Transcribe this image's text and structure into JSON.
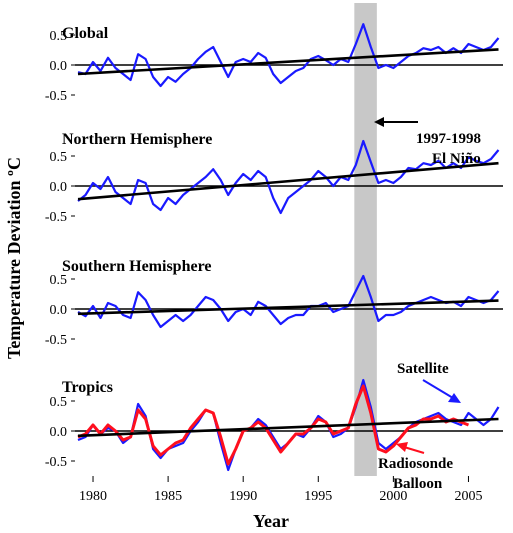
{
  "chart_data": {
    "type": "line",
    "xlabel": "Year",
    "ylabel": "Temperature Deviation ºC",
    "xlim": [
      1978.8,
      2007.3
    ],
    "x_ticks": [
      1980,
      1985,
      1990,
      1995,
      2000,
      2005
    ],
    "y_ticks": [
      "0.5",
      "0.0",
      "-0.5"
    ],
    "shaded_period": [
      1997.4,
      1998.9
    ],
    "annotations": {
      "el_nino_line1": "1997-1998",
      "el_nino_line2": "El Niño",
      "satellite": "Satellite",
      "radiosonde_line1": "Radiosonde",
      "radiosonde_line2": "Balloon"
    },
    "colors": {
      "satellite": "#1a1aff",
      "radiosonde": "#ff0f1e",
      "trend": "#000000",
      "shade": "#c8c8c8"
    },
    "panels": [
      {
        "title": "Global",
        "ylim": [
          -0.62,
          0.78
        ],
        "trend": {
          "x": [
            1979,
            2007
          ],
          "y": [
            -0.15,
            0.26
          ]
        },
        "series": [
          {
            "name": "Satellite",
            "x": [
              1979,
              1979.5,
              1980,
              1980.5,
              1981,
              1981.5,
              1982,
              1982.5,
              1983,
              1983.5,
              1984,
              1984.5,
              1985,
              1985.5,
              1986,
              1986.5,
              1987,
              1987.5,
              1988,
              1988.5,
              1989,
              1989.5,
              1990,
              1990.5,
              1991,
              1991.5,
              1992,
              1992.5,
              1993,
              1993.5,
              1994,
              1994.5,
              1995,
              1995.5,
              1996,
              1996.5,
              1997,
              1997.5,
              1998,
              1998.5,
              1999,
              1999.5,
              2000,
              2000.5,
              2001,
              2001.5,
              2002,
              2002.5,
              2003,
              2003.5,
              2004,
              2004.5,
              2005,
              2005.5,
              2006,
              2006.5,
              2007
            ],
            "y": [
              -0.12,
              -0.15,
              0.05,
              -0.1,
              0.12,
              -0.05,
              -0.15,
              -0.25,
              0.18,
              0.1,
              -0.2,
              -0.35,
              -0.2,
              -0.28,
              -0.15,
              -0.05,
              0.1,
              0.22,
              0.3,
              0.05,
              -0.2,
              0.05,
              0.1,
              0.05,
              0.2,
              0.12,
              -0.15,
              -0.3,
              -0.2,
              -0.1,
              -0.05,
              0.1,
              0.15,
              0.08,
              0,
              0.1,
              0.05,
              0.35,
              0.68,
              0.3,
              -0.05,
              0,
              -0.05,
              0.05,
              0.15,
              0.2,
              0.28,
              0.25,
              0.3,
              0.2,
              0.28,
              0.2,
              0.35,
              0.3,
              0.25,
              0.3,
              0.45
            ]
          }
        ]
      },
      {
        "title": "Northern Hemisphere",
        "ylim": [
          -0.62,
          0.78
        ],
        "trend": {
          "x": [
            1979,
            2007
          ],
          "y": [
            -0.22,
            0.38
          ]
        },
        "series": [
          {
            "name": "Satellite",
            "x": [
              1979,
              1979.5,
              1980,
              1980.5,
              1981,
              1981.5,
              1982,
              1982.5,
              1983,
              1983.5,
              1984,
              1984.5,
              1985,
              1985.5,
              1986,
              1986.5,
              1987,
              1987.5,
              1988,
              1988.5,
              1989,
              1989.5,
              1990,
              1990.5,
              1991,
              1991.5,
              1992,
              1992.5,
              1993,
              1993.5,
              1994,
              1994.5,
              1995,
              1995.5,
              1996,
              1996.5,
              1997,
              1997.5,
              1998,
              1998.5,
              1999,
              1999.5,
              2000,
              2000.5,
              2001,
              2001.5,
              2002,
              2002.5,
              2003,
              2003.5,
              2004,
              2004.5,
              2005,
              2005.5,
              2006,
              2006.5,
              2007
            ],
            "y": [
              -0.25,
              -0.15,
              0.05,
              -0.05,
              0.15,
              -0.1,
              -0.2,
              -0.3,
              0.1,
              0.05,
              -0.3,
              -0.4,
              -0.2,
              -0.3,
              -0.15,
              -0.05,
              0.05,
              0.15,
              0.28,
              0.1,
              -0.15,
              0.05,
              0.2,
              0.1,
              0.25,
              0.15,
              -0.2,
              -0.45,
              -0.2,
              -0.1,
              0,
              0.1,
              0.25,
              0.15,
              0,
              0.15,
              0.1,
              0.35,
              0.75,
              0.4,
              0.05,
              0.1,
              0.05,
              0.15,
              0.3,
              0.28,
              0.38,
              0.35,
              0.42,
              0.3,
              0.38,
              0.3,
              0.48,
              0.42,
              0.38,
              0.45,
              0.6
            ]
          }
        ]
      },
      {
        "title": "Southern Hemisphere",
        "ylim": [
          -0.62,
          0.78
        ],
        "trend": {
          "x": [
            1979,
            2007
          ],
          "y": [
            -0.08,
            0.14
          ]
        },
        "series": [
          {
            "name": "Satellite",
            "x": [
              1979,
              1979.5,
              1980,
              1980.5,
              1981,
              1981.5,
              1982,
              1982.5,
              1983,
              1983.5,
              1984,
              1984.5,
              1985,
              1985.5,
              1986,
              1986.5,
              1987,
              1987.5,
              1988,
              1988.5,
              1989,
              1989.5,
              1990,
              1990.5,
              1991,
              1991.5,
              1992,
              1992.5,
              1993,
              1993.5,
              1994,
              1994.5,
              1995,
              1995.5,
              1996,
              1996.5,
              1997,
              1997.5,
              1998,
              1998.5,
              1999,
              1999.5,
              2000,
              2000.5,
              2001,
              2001.5,
              2002,
              2002.5,
              2003,
              2003.5,
              2004,
              2004.5,
              2005,
              2005.5,
              2006,
              2006.5,
              2007
            ],
            "y": [
              -0.05,
              -0.12,
              0.05,
              -0.15,
              0.1,
              0.05,
              -0.1,
              -0.15,
              0.28,
              0.15,
              -0.1,
              -0.3,
              -0.2,
              -0.1,
              -0.2,
              -0.1,
              0.05,
              0.2,
              0.15,
              0,
              -0.2,
              -0.05,
              0,
              -0.1,
              0.12,
              0.05,
              -0.1,
              -0.25,
              -0.15,
              -0.1,
              -0.1,
              0.05,
              0.05,
              0.1,
              -0.05,
              0,
              0.05,
              0.3,
              0.55,
              0.2,
              -0.2,
              -0.1,
              -0.1,
              -0.05,
              0.05,
              0.1,
              0.15,
              0.2,
              0.15,
              0.1,
              0.12,
              0.05,
              0.2,
              0.15,
              0.1,
              0.15,
              0.3
            ]
          }
        ]
      },
      {
        "title": "Tropics",
        "ylim": [
          -0.8,
          0.95
        ],
        "trend": {
          "x": [
            1979,
            2007
          ],
          "y": [
            -0.08,
            0.2
          ]
        },
        "series": [
          {
            "name": "Satellite",
            "x": [
              1979,
              1979.5,
              1980,
              1980.5,
              1981,
              1981.5,
              1982,
              1982.5,
              1983,
              1983.5,
              1984,
              1984.5,
              1985,
              1985.5,
              1986,
              1986.5,
              1987,
              1987.5,
              1988,
              1988.5,
              1989,
              1989.5,
              1990,
              1990.5,
              1991,
              1991.5,
              1992,
              1992.5,
              1993,
              1993.5,
              1994,
              1994.5,
              1995,
              1995.5,
              1996,
              1996.5,
              1997,
              1997.5,
              1998,
              1998.5,
              1999,
              1999.5,
              2000,
              2000.5,
              2001,
              2001.5,
              2002,
              2002.5,
              2003,
              2003.5,
              2004,
              2004.5,
              2005,
              2005.5,
              2006,
              2006.5,
              2007
            ],
            "y": [
              -0.15,
              -0.1,
              0.1,
              -0.05,
              0.05,
              0,
              -0.2,
              -0.1,
              0.45,
              0.25,
              -0.3,
              -0.45,
              -0.3,
              -0.25,
              -0.2,
              0,
              0.15,
              0.35,
              0.3,
              -0.2,
              -0.65,
              -0.3,
              0,
              0.05,
              0.2,
              0.1,
              -0.1,
              -0.3,
              -0.2,
              -0.05,
              -0.1,
              0.05,
              0.25,
              0.15,
              -0.1,
              -0.05,
              0.05,
              0.4,
              0.85,
              0.4,
              -0.2,
              -0.3,
              -0.2,
              -0.1,
              0.05,
              0.15,
              0.2,
              0.25,
              0.3,
              0.2,
              0.15,
              0.1,
              0.3,
              0.2,
              0.1,
              0.2,
              0.4
            ]
          },
          {
            "name": "Radiosonde Balloon",
            "x": [
              1979,
              1979.5,
              1980,
              1980.5,
              1981,
              1981.5,
              1982,
              1982.5,
              1983,
              1983.5,
              1984,
              1984.5,
              1985,
              1985.5,
              1986,
              1986.5,
              1987,
              1987.5,
              1988,
              1988.5,
              1989,
              1989.5,
              1990,
              1990.5,
              1991,
              1991.5,
              1992,
              1992.5,
              1993,
              1993.5,
              1994,
              1994.5,
              1995,
              1995.5,
              1996,
              1996.5,
              1997,
              1997.5,
              1998,
              1998.5,
              1999,
              1999.5,
              2000,
              2000.5,
              2001,
              2001.5,
              2002,
              2002.5,
              2003,
              2003.5,
              2004,
              2004.5,
              2005
            ],
            "y": [
              -0.1,
              -0.05,
              0.1,
              -0.05,
              0.1,
              0,
              -0.15,
              -0.1,
              0.35,
              0.2,
              -0.25,
              -0.4,
              -0.3,
              -0.2,
              -0.15,
              0.05,
              0.2,
              0.35,
              0.3,
              -0.1,
              -0.55,
              -0.3,
              0,
              0.05,
              0.15,
              0.05,
              -0.15,
              -0.35,
              -0.2,
              -0.05,
              -0.05,
              0.05,
              0.2,
              0.15,
              -0.05,
              0,
              0.05,
              0.45,
              0.75,
              0.3,
              -0.3,
              -0.35,
              -0.25,
              -0.1,
              0.05,
              0.1,
              0.2,
              0.2,
              0.25,
              0.15,
              0.2,
              0.15,
              0.1
            ]
          }
        ]
      }
    ]
  }
}
